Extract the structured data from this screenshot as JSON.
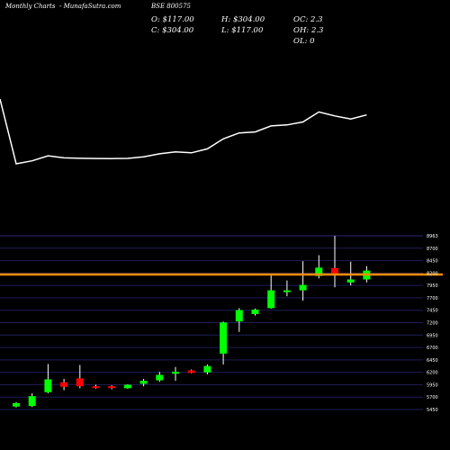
{
  "header": {
    "chart_label": "Monthly Charts",
    "site": "- MunafaSutra.com",
    "symbol": "BSE 800575"
  },
  "ohlc": {
    "open": "O: $117.00",
    "high": "H: $304.00",
    "oc": "OC: 2.3",
    "close": "C: $304.00",
    "low": "L: $117.00",
    "oh": "OH: 2.3",
    "ol": "OL: 0"
  },
  "colors": {
    "background": "#000000",
    "up": "#00ff00",
    "down": "#ff0000",
    "price_line": "#ff8c00",
    "upper_line": "#ffffff",
    "grid": "#1e1e5a"
  },
  "chart_data": {
    "type": "candlestick",
    "y_ticks": [
      "8963",
      "8700",
      "8450",
      "8200",
      "7950",
      "7700",
      "7450",
      "7200",
      "6950",
      "6700",
      "6450",
      "6200",
      "5950",
      "5700",
      "5450"
    ],
    "ylim": [
      5450,
      8963
    ],
    "reference_line": 8180,
    "candles": [
      {
        "o": 5510,
        "h": 5600,
        "l": 5490,
        "c": 5580
      },
      {
        "o": 5520,
        "h": 5780,
        "l": 5500,
        "c": 5720
      },
      {
        "o": 5800,
        "h": 6370,
        "l": 5780,
        "c": 6060
      },
      {
        "o": 6000,
        "h": 6070,
        "l": 5840,
        "c": 5910
      },
      {
        "o": 6080,
        "h": 6350,
        "l": 5880,
        "c": 5920
      },
      {
        "o": 5920,
        "h": 5950,
        "l": 5870,
        "c": 5890
      },
      {
        "o": 5920,
        "h": 5940,
        "l": 5860,
        "c": 5900
      },
      {
        "o": 5880,
        "h": 5960,
        "l": 5870,
        "c": 5950
      },
      {
        "o": 5970,
        "h": 6070,
        "l": 5920,
        "c": 6030
      },
      {
        "o": 6040,
        "h": 6210,
        "l": 6010,
        "c": 6150
      },
      {
        "o": 6190,
        "h": 6310,
        "l": 6030,
        "c": 6210
      },
      {
        "o": 6240,
        "h": 6260,
        "l": 6180,
        "c": 6190
      },
      {
        "o": 6200,
        "h": 6360,
        "l": 6160,
        "c": 6330
      },
      {
        "o": 6580,
        "h": 7230,
        "l": 6360,
        "c": 7210
      },
      {
        "o": 7230,
        "h": 7500,
        "l": 7020,
        "c": 7460
      },
      {
        "o": 7380,
        "h": 7490,
        "l": 7350,
        "c": 7470
      },
      {
        "o": 7500,
        "h": 8160,
        "l": 7490,
        "c": 7860
      },
      {
        "o": 7840,
        "h": 8060,
        "l": 7740,
        "c": 7860
      },
      {
        "o": 7860,
        "h": 8450,
        "l": 7650,
        "c": 7970
      },
      {
        "o": 8150,
        "h": 8570,
        "l": 8100,
        "c": 8320
      },
      {
        "o": 8310,
        "h": 8960,
        "l": 7920,
        "c": 8180
      },
      {
        "o": 8020,
        "h": 8440,
        "l": 7960,
        "c": 8080
      },
      {
        "o": 8080,
        "h": 8350,
        "l": 8020,
        "c": 8260
      }
    ],
    "upper_line_values": [
      80,
      15,
      18,
      23,
      21,
      20.5,
      20.3,
      20.2,
      20.4,
      22,
      25,
      27,
      26,
      30,
      40,
      46,
      47,
      53,
      54,
      57,
      67,
      63,
      60,
      64
    ]
  }
}
